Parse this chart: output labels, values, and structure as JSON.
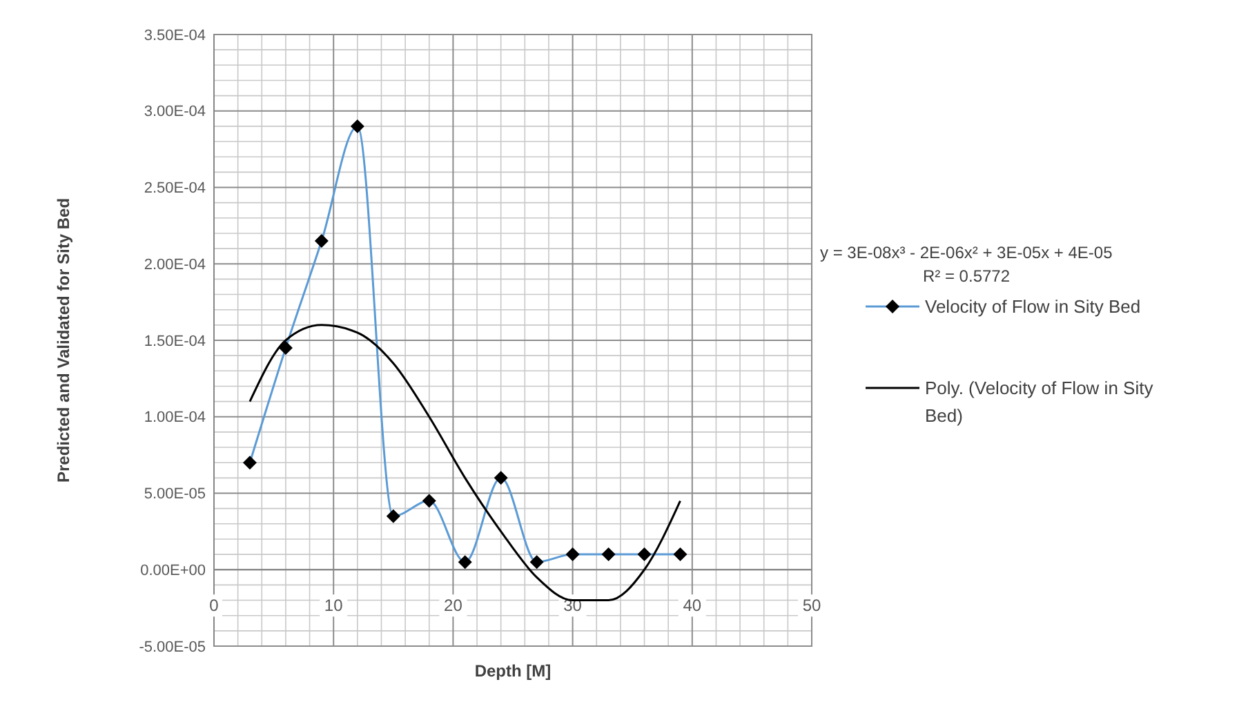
{
  "chart_data": {
    "type": "line",
    "xlabel": "Depth [M]",
    "ylabel": "Predicted and Validated for Sity Bed",
    "xlim": [
      0,
      50
    ],
    "xticks": [
      0,
      10,
      20,
      30,
      40,
      50
    ],
    "ylim": [
      -5e-05,
      0.00035
    ],
    "yticks": [
      {
        "value": -5e-05,
        "label": "-5.00E-05"
      },
      {
        "value": 0,
        "label": "0.00E+00"
      },
      {
        "value": 5e-05,
        "label": "5.00E-05"
      },
      {
        "value": 0.0001,
        "label": "1.00E-04"
      },
      {
        "value": 0.00015,
        "label": "1.50E-04"
      },
      {
        "value": 0.0002,
        "label": "2.00E-04"
      },
      {
        "value": 0.00025,
        "label": "2.50E-04"
      },
      {
        "value": 0.0003,
        "label": "3.00E-04"
      },
      {
        "value": 0.00035,
        "label": "3.50E-04"
      }
    ],
    "grid": true,
    "legend": "right",
    "series": [
      {
        "name": "Velocity of Flow in Sity Bed",
        "color": "#5b9bd5",
        "marker": "diamond",
        "x": [
          3,
          6,
          9,
          12,
          15,
          18,
          21,
          24,
          27,
          30,
          33,
          36,
          39
        ],
        "values": [
          7e-05,
          0.000145,
          0.000215,
          0.00029,
          3.5e-05,
          4.5e-05,
          5e-06,
          6e-05,
          5e-06,
          1e-05,
          1e-05,
          1e-05,
          1e-05
        ]
      },
      {
        "name": "Poly. (Velocity of Flow in Sity Bed)",
        "color": "#000000",
        "marker": "none",
        "x": [
          3,
          6,
          9,
          12,
          15,
          18,
          21,
          24,
          27,
          30,
          33,
          36,
          39
        ],
        "values": [
          0.00011,
          0.00015,
          0.00016,
          0.000155,
          0.000135,
          0.0001,
          6e-05,
          2.5e-05,
          -5e-06,
          -2e-05,
          -2e-05,
          0,
          4.5e-05
        ]
      }
    ],
    "annotations": [
      "y = 3E-08x³ - 2E-06x² + 3E-05x + 4E-05",
      "R² = 0.5772"
    ]
  }
}
